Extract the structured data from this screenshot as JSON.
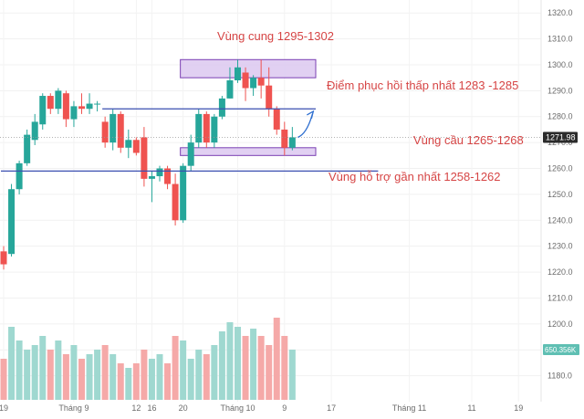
{
  "chart_data": {
    "type": "candlestick",
    "title": "",
    "xlabel": "",
    "ylabel": "",
    "ylim": [
      1170,
      1325
    ],
    "y_ticks": [
      1180,
      1190,
      1200,
      1210,
      1220,
      1230,
      1240,
      1250,
      1260,
      1270,
      1280,
      1290,
      1300,
      1310,
      1320
    ],
    "x_ticks": [
      {
        "label": "19",
        "index": 0
      },
      {
        "label": "Tháng 9",
        "index": 9
      },
      {
        "label": "12",
        "index": 17
      },
      {
        "label": "16",
        "index": 19
      },
      {
        "label": "20",
        "index": 23
      },
      {
        "label": "Tháng 10",
        "index": 30
      },
      {
        "label": "9",
        "index": 36
      },
      {
        "label": "17",
        "index": 42
      },
      {
        "label": "Tháng 11",
        "index": 52
      },
      {
        "label": "11",
        "index": 60
      },
      {
        "label": "19",
        "index": 66
      }
    ],
    "candles": [
      {
        "o": 1228,
        "h": 1230,
        "l": 1221,
        "c": 1223
      },
      {
        "o": 1227,
        "h": 1254,
        "l": 1226,
        "c": 1252
      },
      {
        "o": 1252,
        "h": 1263,
        "l": 1250,
        "c": 1262
      },
      {
        "o": 1262,
        "h": 1275,
        "l": 1261,
        "c": 1273
      },
      {
        "o": 1271,
        "h": 1281,
        "l": 1269,
        "c": 1278
      },
      {
        "o": 1277,
        "h": 1289,
        "l": 1275,
        "c": 1288
      },
      {
        "o": 1288,
        "h": 1289,
        "l": 1281,
        "c": 1283
      },
      {
        "o": 1283,
        "h": 1291,
        "l": 1281,
        "c": 1290
      },
      {
        "o": 1289,
        "h": 1290,
        "l": 1276,
        "c": 1279
      },
      {
        "o": 1279,
        "h": 1286,
        "l": 1276,
        "c": 1284
      },
      {
        "o": 1284,
        "h": 1289,
        "l": 1281,
        "c": 1283
      },
      {
        "o": 1283,
        "h": 1289,
        "l": 1281,
        "c": 1285
      },
      {
        "o": 1285,
        "h": 1286,
        "l": 1282,
        "c": 1285
      },
      {
        "o": 1278,
        "h": 1280,
        "l": 1268,
        "c": 1270
      },
      {
        "o": 1270,
        "h": 1283,
        "l": 1267,
        "c": 1281
      },
      {
        "o": 1281,
        "h": 1282,
        "l": 1266,
        "c": 1268
      },
      {
        "o": 1268,
        "h": 1275,
        "l": 1264,
        "c": 1271
      },
      {
        "o": 1271,
        "h": 1272,
        "l": 1265,
        "c": 1266
      },
      {
        "o": 1272,
        "h": 1276,
        "l": 1253,
        "c": 1256
      },
      {
        "o": 1256,
        "h": 1259,
        "l": 1247,
        "c": 1257
      },
      {
        "o": 1257,
        "h": 1261,
        "l": 1255,
        "c": 1260
      },
      {
        "o": 1260,
        "h": 1261,
        "l": 1252,
        "c": 1254
      },
      {
        "o": 1254,
        "h": 1258,
        "l": 1238,
        "c": 1240
      },
      {
        "o": 1240,
        "h": 1262,
        "l": 1239,
        "c": 1261
      },
      {
        "o": 1261,
        "h": 1273,
        "l": 1259,
        "c": 1270
      },
      {
        "o": 1270,
        "h": 1283,
        "l": 1268,
        "c": 1281
      },
      {
        "o": 1281,
        "h": 1282,
        "l": 1268,
        "c": 1270
      },
      {
        "o": 1270,
        "h": 1281,
        "l": 1268,
        "c": 1280
      },
      {
        "o": 1280,
        "h": 1288,
        "l": 1279,
        "c": 1287
      },
      {
        "o": 1287,
        "h": 1299,
        "l": 1287,
        "c": 1294
      },
      {
        "o": 1294,
        "h": 1302,
        "l": 1293,
        "c": 1299
      },
      {
        "o": 1297,
        "h": 1299,
        "l": 1286,
        "c": 1291
      },
      {
        "o": 1291,
        "h": 1296,
        "l": 1288,
        "c": 1295
      },
      {
        "o": 1295,
        "h": 1302,
        "l": 1287,
        "c": 1292
      },
      {
        "o": 1292,
        "h": 1299,
        "l": 1280,
        "c": 1283
      },
      {
        "o": 1283,
        "h": 1284,
        "l": 1273,
        "c": 1275
      },
      {
        "o": 1275,
        "h": 1278,
        "l": 1265,
        "c": 1268
      },
      {
        "o": 1268,
        "h": 1276,
        "l": 1267,
        "c": 1272
      }
    ],
    "volume": [
      0.45,
      0.8,
      0.65,
      0.55,
      0.6,
      0.7,
      0.55,
      0.65,
      0.5,
      0.6,
      0.45,
      0.5,
      0.55,
      0.6,
      0.5,
      0.4,
      0.35,
      0.4,
      0.55,
      0.45,
      0.5,
      0.4,
      0.7,
      0.65,
      0.45,
      0.55,
      0.5,
      0.6,
      0.75,
      0.85,
      0.8,
      0.7,
      0.78,
      0.7,
      0.6,
      0.9,
      0.7,
      0.55
    ],
    "zones": [
      {
        "name": "supply",
        "y1": 1295,
        "y2": 1302,
        "start": 23,
        "end": 40,
        "color": "#dcc8f0",
        "label": "Vùng cung 1295-1302"
      },
      {
        "name": "demand",
        "y1": 1265,
        "y2": 1268,
        "start": 23,
        "end": 40,
        "color": "#dcc8f0",
        "label": "Vùng cầu 1265-1268"
      }
    ],
    "lines": [
      {
        "name": "recovery",
        "y": 1283,
        "start": 13,
        "end": 40,
        "color": "#3a4fb0",
        "label": "Điểm phục hồi thấp nhất 1283 -1285"
      },
      {
        "name": "support",
        "y": 1259,
        "start": 0,
        "end": 48,
        "color": "#3a4fb0",
        "label": "Vùng hỗ trợ gần nhất 1258-1262"
      }
    ],
    "last_price": "1271.98",
    "last_volume": "650.356K",
    "up_color": "#26a69a",
    "down_color": "#ef5350"
  }
}
